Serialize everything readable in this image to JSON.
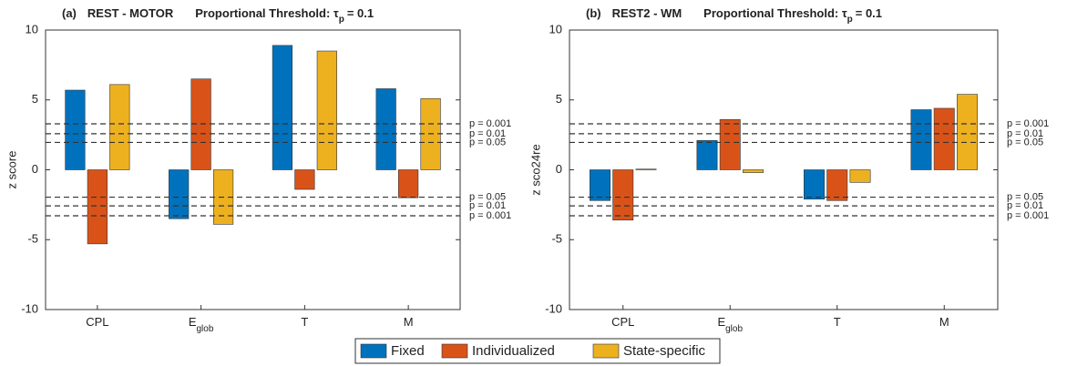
{
  "chart_data": [
    {
      "type": "bar",
      "panel_label": "(a)",
      "title": "REST - MOTOR",
      "threshold_text": "Proportional Threshold: τ",
      "threshold_sub": "p",
      "threshold_value_text": "= 0.1",
      "ylabel": "z score",
      "categories": [
        "CPL",
        "E",
        "T",
        "M"
      ],
      "category_subscripts": [
        null,
        "glob",
        null,
        null
      ],
      "ylim": [
        -10,
        10
      ],
      "yticks": [
        -10,
        -5,
        0,
        5,
        10
      ],
      "thresholds": [
        {
          "value": 3.29,
          "label": "p = 0.001"
        },
        {
          "value": 2.58,
          "label": "p = 0.01"
        },
        {
          "value": 1.96,
          "label": "p = 0.05"
        },
        {
          "value": -1.96,
          "label": "p = 0.05"
        },
        {
          "value": -2.58,
          "label": "p = 0.01"
        },
        {
          "value": -3.29,
          "label": "p = 0.001"
        }
      ],
      "series": [
        {
          "name": "Fixed",
          "color": "#0072bd",
          "values": [
            5.7,
            -3.5,
            8.9,
            5.8
          ]
        },
        {
          "name": "Individualized",
          "color": "#d95319",
          "values": [
            -5.3,
            6.5,
            -1.4,
            -2.0
          ]
        },
        {
          "name": "State-specific",
          "color": "#edb120",
          "values": [
            6.1,
            -3.9,
            8.5,
            5.1
          ]
        }
      ]
    },
    {
      "type": "bar",
      "panel_label": "(b)",
      "title": "REST2 - WM",
      "threshold_text": "Proportional Threshold: τ",
      "threshold_sub": "p",
      "threshold_value_text": "= 0.1",
      "ylabel": "z sco24re",
      "categories": [
        "CPL",
        "E",
        "T",
        "M"
      ],
      "category_subscripts": [
        null,
        "glob",
        null,
        null
      ],
      "ylim": [
        -10,
        10
      ],
      "yticks": [
        -10,
        -5,
        0,
        5,
        10
      ],
      "thresholds": [
        {
          "value": 3.29,
          "label": "p = 0.001"
        },
        {
          "value": 2.58,
          "label": "p = 0.01"
        },
        {
          "value": 1.96,
          "label": "p = 0.05"
        },
        {
          "value": -1.96,
          "label": "p = 0.05"
        },
        {
          "value": -2.58,
          "label": "p = 0.01"
        },
        {
          "value": -3.29,
          "label": "p = 0.001"
        }
      ],
      "series": [
        {
          "color": "#0072bd",
          "values": [
            -2.2,
            2.1,
            -2.1,
            4.3
          ]
        },
        {
          "color": "#d95319",
          "values": [
            -3.6,
            3.6,
            -2.2,
            4.4
          ]
        },
        {
          "color": "#edb120",
          "values": [
            0.05,
            -0.2,
            -0.9,
            5.4
          ]
        }
      ]
    }
  ]
}
